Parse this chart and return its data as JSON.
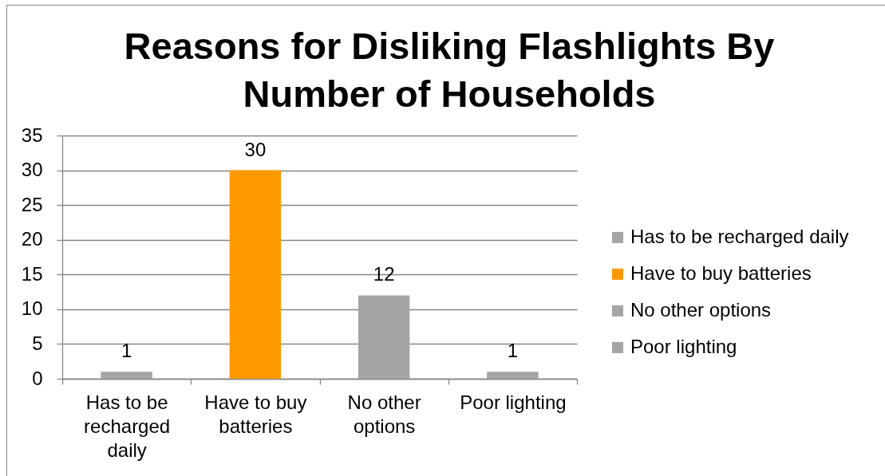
{
  "chart_data": {
    "type": "bar",
    "title": "Reasons for Disliking Flashlights By Number of Households",
    "categories": [
      "Has to be recharged daily",
      "Have to buy batteries",
      "No other options",
      "Poor lighting"
    ],
    "series": [
      {
        "name": "Has to be recharged daily",
        "color": "#a5a5a5",
        "values": [
          1,
          null,
          null,
          null
        ]
      },
      {
        "name": "Have to buy batteries",
        "color": "#ff9900",
        "values": [
          null,
          30,
          null,
          null
        ]
      },
      {
        "name": "No other options",
        "color": "#a5a5a5",
        "values": [
          null,
          null,
          12,
          null
        ]
      },
      {
        "name": "Poor lighting",
        "color": "#a5a5a5",
        "values": [
          null,
          null,
          null,
          1
        ]
      }
    ],
    "ylim": [
      0,
      35
    ],
    "yticks": [
      0,
      5,
      10,
      15,
      20,
      25,
      30,
      35
    ],
    "grid": "y",
    "legend": "right",
    "data_labels": true
  }
}
